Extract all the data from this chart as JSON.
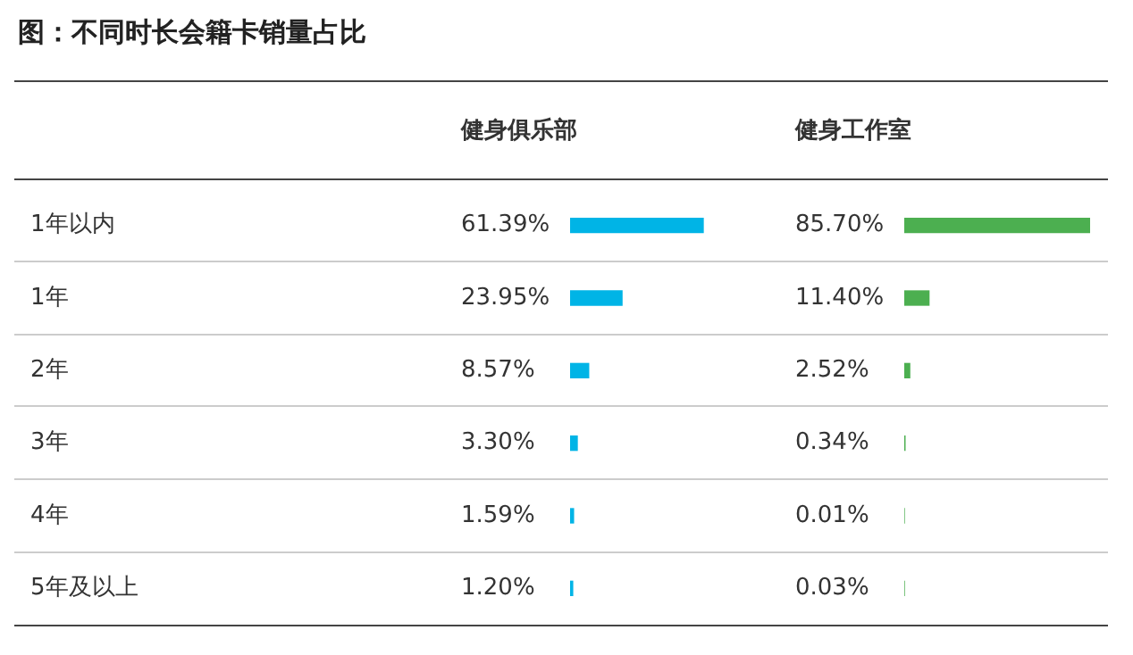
{
  "chart_data": [
    {
      "type": "bar",
      "orientation": "horizontal",
      "title": "图：不同时长会籍卡销量占比",
      "categories": [
        "1年以内",
        "1年",
        "2年",
        "3年",
        "4年",
        "5年及以上"
      ],
      "tick_labels": "y",
      "series": [
        {
          "name": "健身俱乐部",
          "color": "#00b4e6",
          "values": [
            61.39,
            23.95,
            8.57,
            3.3,
            1.59,
            1.2
          ],
          "value_labels": [
            "61.39%",
            "23.95%",
            "8.57%",
            "3.30%",
            "1.59%",
            "1.20%"
          ]
        }
      ]
    },
    {
      "type": "bar",
      "orientation": "horizontal",
      "categories": [
        null,
        null,
        null,
        null,
        null,
        null
      ],
      "tick_labels": false,
      "series": [
        {
          "name": "健身工作室",
          "color": "#4caf50",
          "values": [
            85.7,
            11.4,
            2.52,
            0.34,
            0.01,
            0.03
          ],
          "value_labels": [
            "85.70%",
            "11.40%",
            "2.52%",
            "0.34%",
            "0.01%",
            "0.03%"
          ]
        }
      ]
    }
  ]
}
